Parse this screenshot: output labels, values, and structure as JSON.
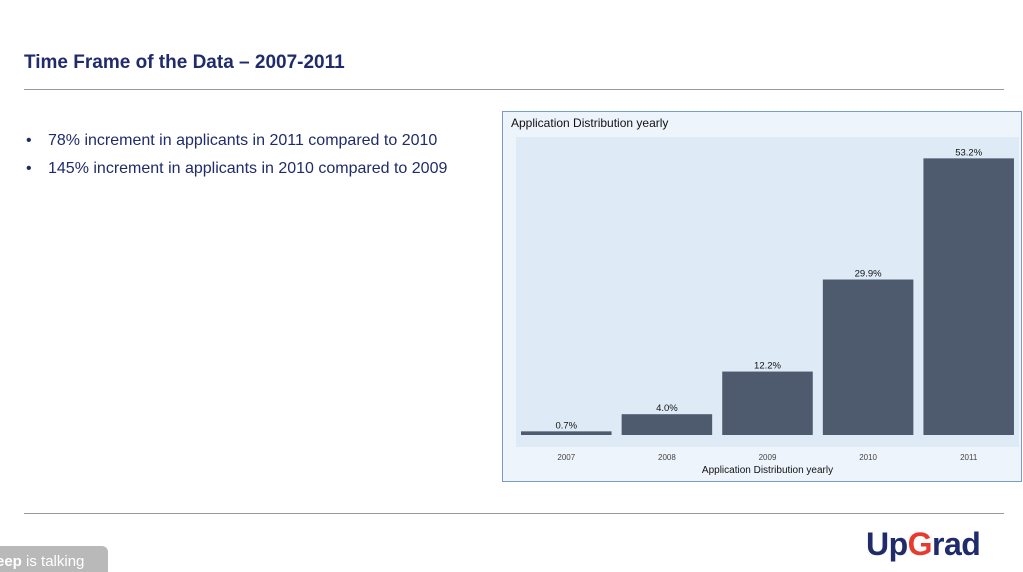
{
  "slide": {
    "title": "Time Frame of the Data – 2007-2011",
    "bullets": [
      "78% increment in applicants in 2011 compared to 2010",
      "145% increment in applicants in 2010 compared to 2009"
    ]
  },
  "chart_data": {
    "type": "bar",
    "title": "Application Distribution yearly",
    "xlabel": "Application Distribution yearly",
    "ylabel": "",
    "categories": [
      "2007",
      "2008",
      "2009",
      "2010",
      "2011"
    ],
    "values": [
      0.7,
      4.0,
      12.2,
      29.9,
      53.2
    ],
    "value_labels": [
      "0.7%",
      "4.0%",
      "12.2%",
      "29.9%",
      "53.2%"
    ],
    "ylim": [
      0,
      55
    ],
    "grid": false,
    "bar_color": "#4e5a6e",
    "panel_color": "#deebf7"
  },
  "logo": {
    "part1": "Up",
    "part2": "G",
    "part3": "rad",
    "accent_color": "#e63b2e"
  },
  "speaker_badge": {
    "name": "eep",
    "suffix": " is talking"
  }
}
